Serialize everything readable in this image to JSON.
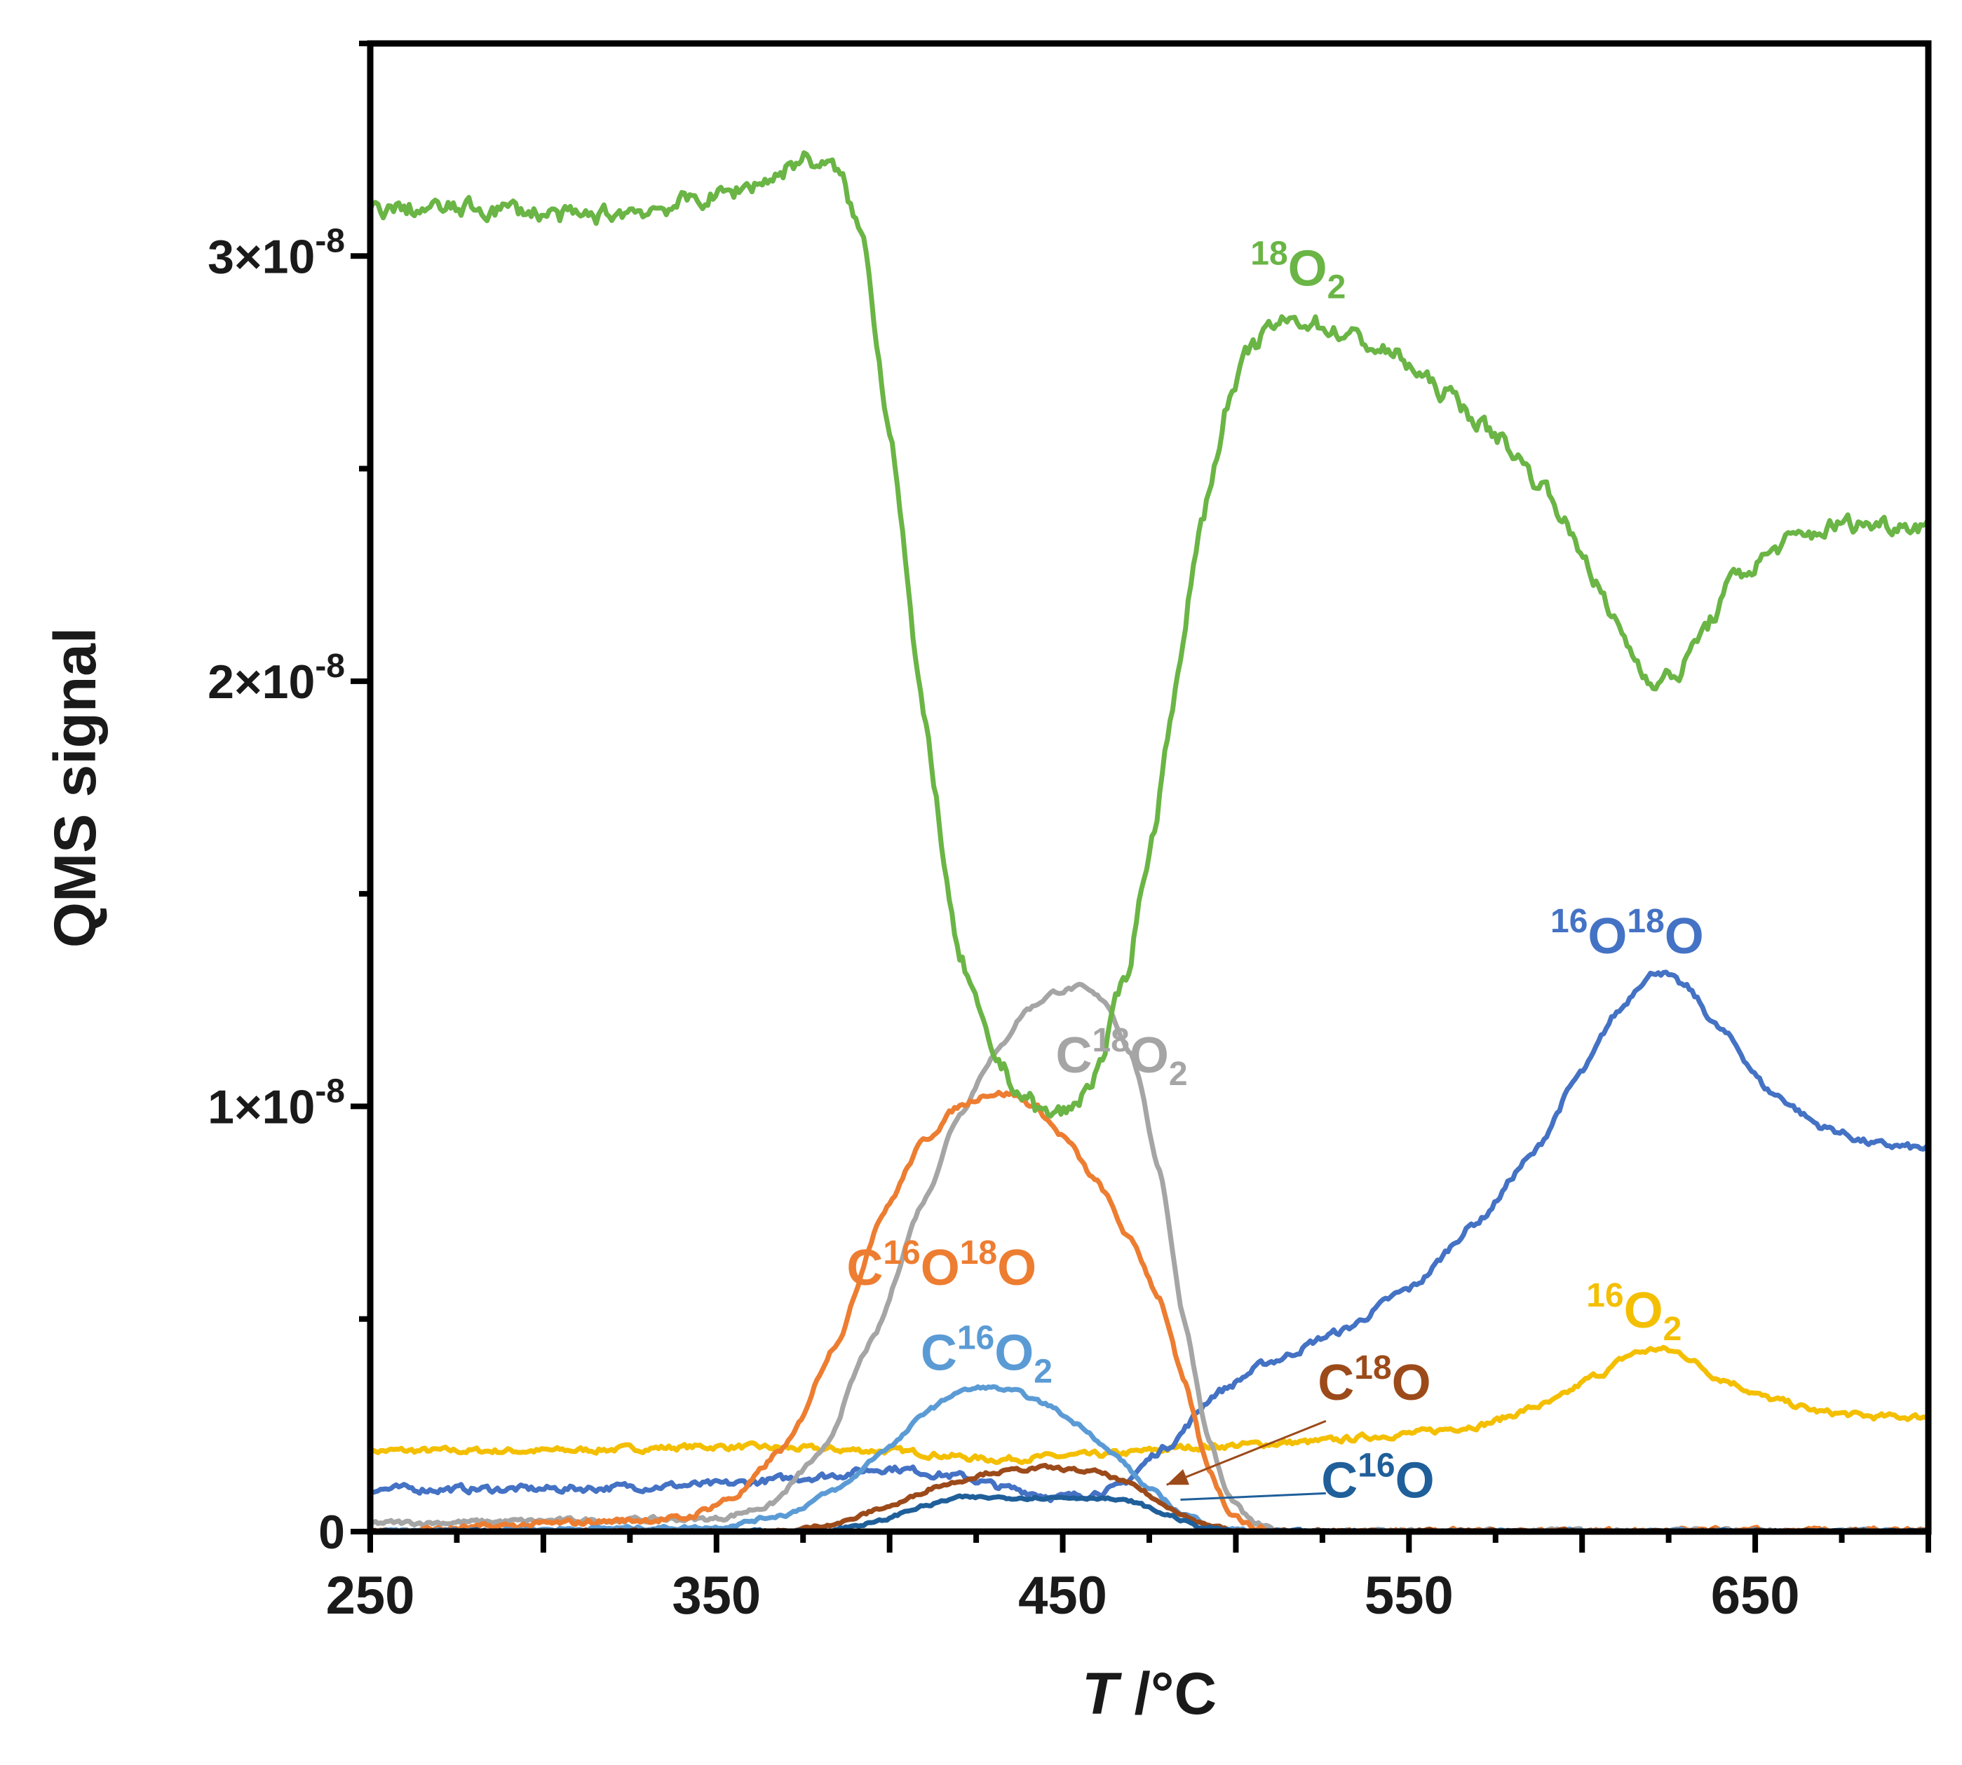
{
  "chart_data": {
    "type": "line",
    "title": "",
    "xlabel_italic": "T",
    "xlabel_rest": " /°C",
    "ylabel": "QMS signal",
    "xlim": [
      250,
      700
    ],
    "ylim": [
      0,
      3.5e-08
    ],
    "x_ticks": [
      250,
      350,
      450,
      550,
      650
    ],
    "x_tick_labels": [
      "250",
      "350",
      "450",
      "550",
      "650"
    ],
    "y_ticks": [
      {
        "value": 0,
        "mantissa": "0",
        "exponent": ""
      },
      {
        "value": 1e-08,
        "mantissa": "1×10",
        "exponent": "-8"
      },
      {
        "value": 2e-08,
        "mantissa": "2×10",
        "exponent": "-8"
      },
      {
        "value": 3e-08,
        "mantissa": "3×10",
        "exponent": "-8"
      }
    ],
    "series": [
      {
        "name": "18O2",
        "color": "#6ab545",
        "noise": 3e-10,
        "x": [
          250,
          270,
          290,
          310,
          330,
          350,
          365,
          375,
          385,
          392,
          400,
          410,
          420,
          430,
          438,
          445,
          452,
          460,
          468,
          475,
          483,
          490,
          498,
          505,
          512,
          520,
          530,
          545,
          560,
          575,
          590,
          600,
          610,
          618,
          622,
          628,
          635,
          645,
          660,
          675,
          690,
          700
        ],
        "values": [
          3.11e-08,
          3.11e-08,
          3.11e-08,
          3.09e-08,
          3.11e-08,
          3.14e-08,
          3.18e-08,
          3.23e-08,
          3.2e-08,
          3.05e-08,
          2.6e-08,
          1.9e-08,
          1.35e-08,
          1.12e-08,
          1.03e-08,
          9.8e-09,
          9.9e-09,
          1.08e-08,
          1.3e-08,
          1.6e-08,
          2e-08,
          2.38e-08,
          2.66e-08,
          2.79e-08,
          2.84e-08,
          2.85e-08,
          2.82e-08,
          2.77e-08,
          2.68e-08,
          2.58e-08,
          2.45e-08,
          2.3e-08,
          2.13e-08,
          2.02e-08,
          2e-08,
          2.02e-08,
          2.12e-08,
          2.25e-08,
          2.33e-08,
          2.37e-08,
          2.37e-08,
          2.37e-08
        ]
      },
      {
        "name": "C18O2",
        "color": "#a5a5a5",
        "noise": 8e-11,
        "x": [
          250,
          350,
          365,
          380,
          395,
          410,
          420,
          430,
          440,
          448,
          455,
          462,
          470,
          478,
          485,
          492,
          498,
          505,
          512,
          520,
          700
        ],
        "values": [
          2e-10,
          3e-10,
          6e-10,
          1.8e-09,
          4.5e-09,
          7.8e-09,
          9.8e-09,
          1.12e-08,
          1.23e-08,
          1.27e-08,
          1.28e-08,
          1.25e-08,
          1.12e-08,
          8.5e-09,
          5e-09,
          2.2e-09,
          8e-10,
          2e-10,
          0.0,
          0.0,
          0.0
        ]
      },
      {
        "name": "C16O18O",
        "color": "#ed7d31",
        "noise": 1e-10,
        "x": [
          250,
          340,
          355,
          370,
          385,
          398,
          410,
          420,
          428,
          435,
          442,
          450,
          460,
          470,
          478,
          485,
          492,
          498,
          505,
          512,
          700
        ],
        "values": [
          0.0,
          3e-10,
          8e-10,
          2e-09,
          4.5e-09,
          7.5e-09,
          9.2e-09,
          1e-08,
          1.03e-08,
          1.03e-08,
          1e-08,
          9.3e-09,
          8.2e-09,
          6.8e-09,
          5.5e-09,
          3.5e-09,
          1.5e-09,
          5e-10,
          1e-10,
          0.0,
          0.0
        ]
      },
      {
        "name": "C16O2",
        "color": "#5b9bd5",
        "noise": 6e-11,
        "x": [
          250,
          350,
          370,
          385,
          400,
          412,
          420,
          428,
          436,
          445,
          455,
          465,
          475,
          485,
          495,
          505,
          700
        ],
        "values": [
          0.0,
          1e-10,
          4e-10,
          1e-09,
          2e-09,
          2.9e-09,
          3.3e-09,
          3.4e-09,
          3.3e-09,
          3e-09,
          2.5e-09,
          1.8e-09,
          1e-09,
          4e-10,
          1e-10,
          0.0,
          0.0
        ]
      },
      {
        "name": "16O18O",
        "color": "#4472c4",
        "noise": 1.2e-10,
        "x": [
          250,
          300,
          350,
          380,
          400,
          420,
          435,
          450,
          465,
          480,
          495,
          510,
          530,
          550,
          570,
          585,
          600,
          610,
          618,
          622,
          630,
          640,
          655,
          670,
          685,
          700
        ],
        "values": [
          1e-09,
          1e-09,
          1.1e-09,
          1.3e-09,
          1.5e-09,
          1.3e-09,
          1e-09,
          8e-10,
          1e-09,
          2e-09,
          3.3e-09,
          4e-09,
          4.7e-09,
          5.7e-09,
          7.3e-09,
          8.8e-09,
          1.08e-08,
          1.22e-08,
          1.3e-08,
          1.32e-08,
          1.28e-08,
          1.18e-08,
          1.03e-08,
          9.5e-09,
          9.1e-09,
          9e-09
        ]
      },
      {
        "name": "16O2",
        "color": "#f4bf00",
        "noise": 1e-10,
        "x": [
          250,
          300,
          350,
          400,
          430,
          460,
          490,
          520,
          550,
          570,
          590,
          605,
          615,
          622,
          628,
          640,
          655,
          670,
          685,
          700
        ],
        "values": [
          1.9e-09,
          1.9e-09,
          2e-09,
          1.9e-09,
          1.7e-09,
          1.8e-09,
          2e-09,
          2.1e-09,
          2.3e-09,
          2.5e-09,
          3e-09,
          3.7e-09,
          4.2e-09,
          4.3e-09,
          4.2e-09,
          3.6e-09,
          3.1e-09,
          2.8e-09,
          2.7e-09,
          2.7e-09
        ]
      },
      {
        "name": "C18O",
        "color": "#9c4a1a",
        "noise": 6e-11,
        "x": [
          250,
          370,
          385,
          400,
          415,
          430,
          445,
          460,
          470,
          480,
          490,
          500,
          700
        ],
        "values": [
          0.0,
          0.0,
          2e-10,
          6e-10,
          1.1e-09,
          1.4e-09,
          1.5e-09,
          1.4e-09,
          1.1e-09,
          6e-10,
          2e-10,
          0.0,
          0.0
        ]
      },
      {
        "name": "C16O",
        "color": "#1f5f9a",
        "noise": 5e-11,
        "x": [
          250,
          380,
          395,
          410,
          420,
          440,
          460,
          470,
          480,
          490,
          500,
          700
        ],
        "values": [
          0.0,
          0.0,
          2e-10,
          6e-10,
          8e-10,
          8e-10,
          8e-10,
          7e-10,
          4e-10,
          1e-10,
          0.0,
          0.0
        ]
      }
    ],
    "annotations": [
      {
        "series": "18O2",
        "color": "#6ab545",
        "parts": [
          {
            "t": "18",
            "sup": true
          },
          {
            "t": "O"
          },
          {
            "t": "2",
            "sub": true
          }
        ]
      },
      {
        "series": "C18O2",
        "color": "#a5a5a5",
        "parts": [
          {
            "t": "C"
          },
          {
            "t": "18",
            "sup": true
          },
          {
            "t": "O"
          },
          {
            "t": "2",
            "sub": true
          }
        ]
      },
      {
        "series": "16O18O",
        "color": "#4472c4",
        "parts": [
          {
            "t": "16",
            "sup": true
          },
          {
            "t": "O"
          },
          {
            "t": "18",
            "sup": true
          },
          {
            "t": "O"
          }
        ]
      },
      {
        "series": "C16O18O",
        "color": "#ed7d31",
        "parts": [
          {
            "t": "C"
          },
          {
            "t": "16",
            "sup": true
          },
          {
            "t": "O"
          },
          {
            "t": "18",
            "sup": true
          },
          {
            "t": "O"
          }
        ]
      },
      {
        "series": "C16O2",
        "color": "#5b9bd5",
        "parts": [
          {
            "t": "C"
          },
          {
            "t": "16",
            "sup": true
          },
          {
            "t": "O"
          },
          {
            "t": "2",
            "sub": true
          }
        ]
      },
      {
        "series": "C18O",
        "color": "#9c4a1a",
        "parts": [
          {
            "t": "C"
          },
          {
            "t": "18",
            "sup": true
          },
          {
            "t": "O"
          }
        ]
      },
      {
        "series": "16O2",
        "color": "#f4bf00",
        "parts": [
          {
            "t": "16",
            "sup": true
          },
          {
            "t": "O"
          },
          {
            "t": "2",
            "sub": true
          }
        ]
      },
      {
        "series": "C16O",
        "color": "#1f5f9a",
        "parts": [
          {
            "t": "C"
          },
          {
            "t": "16",
            "sup": true
          },
          {
            "t": "O"
          }
        ]
      }
    ]
  }
}
